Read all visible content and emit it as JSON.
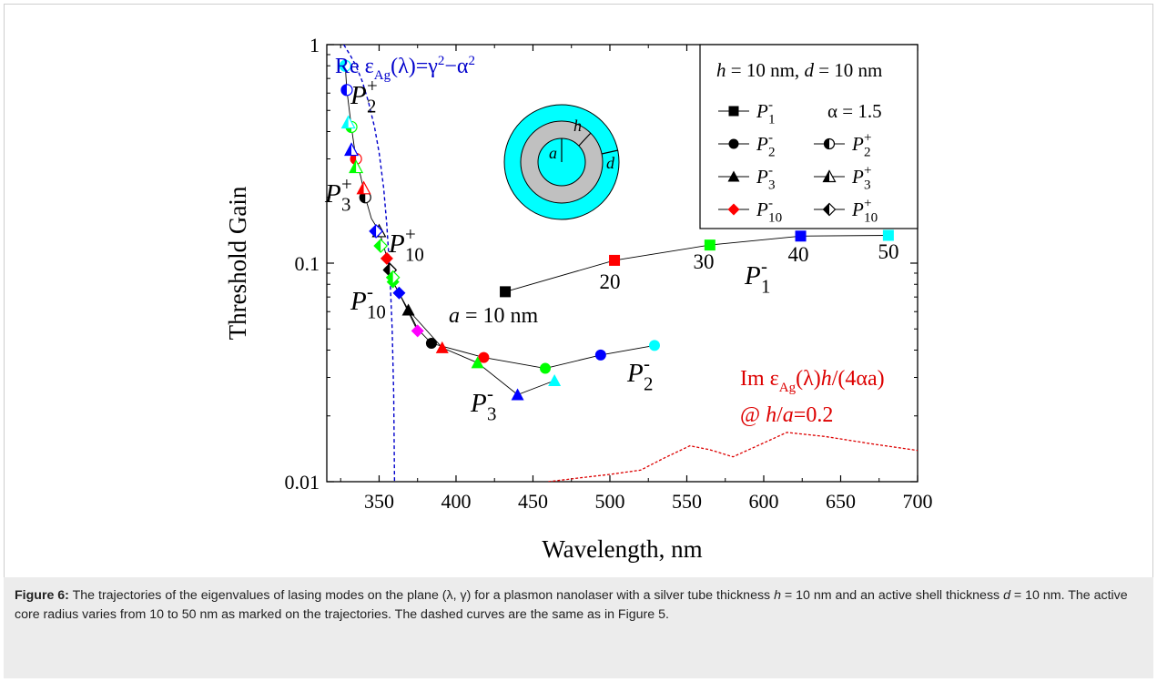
{
  "chart_data": {
    "type": "scatter",
    "xlabel": "Wavelength, nm",
    "ylabel": "Threshold Gain",
    "xlim": [
      316,
      700
    ],
    "ylim": [
      0.01,
      1
    ],
    "yscale": "log",
    "xticks": [
      350,
      400,
      450,
      500,
      550,
      600,
      650,
      700
    ],
    "xtick_labels": [
      "350",
      "400",
      "450",
      "500",
      "550",
      "600",
      "650",
      "700"
    ],
    "yticks": [
      0.01,
      0.1,
      1
    ],
    "ytick_labels": [
      "0.01",
      "0.1",
      "1"
    ],
    "legend": {
      "title_h": "h",
      "title_rest": " = 10 nm, ",
      "title_d": "d",
      "title_rest2": " = 10 nm",
      "alpha_text": "α = 1.5",
      "placement": "top-right"
    },
    "series": [
      {
        "name": "P1-",
        "color": "multi",
        "marker": "square",
        "fill": "full",
        "x": [
          432,
          503,
          565,
          624,
          681
        ],
        "y": [
          0.074,
          0.103,
          0.121,
          0.133,
          0.134
        ],
        "colors": [
          "#000000",
          "#ff0000",
          "#00ff00",
          "#0000ff",
          "#00ffff"
        ]
      },
      {
        "name": "P2-",
        "marker": "circle",
        "fill": "full",
        "x": [
          384,
          418,
          458,
          494,
          529
        ],
        "y": [
          0.043,
          0.037,
          0.033,
          0.038,
          0.042
        ],
        "colors": [
          "#000000",
          "#ff0000",
          "#00ff00",
          "#0000ff",
          "#00ffff"
        ]
      },
      {
        "name": "P3-",
        "marker": "triangle",
        "fill": "full",
        "x": [
          369,
          391,
          414,
          440,
          464
        ],
        "y": [
          0.061,
          0.041,
          0.035,
          0.025,
          0.029
        ],
        "colors": [
          "#000000",
          "#ff0000",
          "#00ff00",
          "#0000ff",
          "#00ffff"
        ]
      },
      {
        "name": "P10-",
        "marker": "diamond",
        "fill": "full",
        "x": [
          357,
          355,
          359,
          363,
          375
        ],
        "y": [
          0.094,
          0.105,
          0.082,
          0.073,
          0.049
        ],
        "colors": [
          "#000000",
          "#ff0000",
          "#00ff00",
          "#0000ff",
          "#ff00ff"
        ]
      },
      {
        "name": "P2+",
        "marker": "circle",
        "fill": "half",
        "x": [
          341,
          335,
          332,
          329,
          328
        ],
        "y": [
          0.2,
          0.3,
          0.42,
          0.62,
          0.8
        ],
        "colors": [
          "#000000",
          "#ff0000",
          "#00ff00",
          "#0000ff",
          "#00ffff"
        ]
      },
      {
        "name": "P3+",
        "marker": "triangle",
        "fill": "half",
        "x": [
          350,
          340,
          335,
          332,
          330
        ],
        "y": [
          0.14,
          0.22,
          0.275,
          0.33,
          0.44
        ],
        "colors": [
          "#000000",
          "#ff0000",
          "#00ff00",
          "#0000ff",
          "#00ffff"
        ]
      },
      {
        "name": "P10+",
        "marker": "diamond",
        "fill": "half",
        "x": [
          357,
          359,
          351,
          348
        ],
        "y": [
          0.093,
          0.086,
          0.12,
          0.14
        ],
        "colors": [
          "#000000",
          "#00ff00",
          "#00ff00",
          "#0000ff"
        ]
      }
    ],
    "curve_re": {
      "name": "Re ε_Ag(λ)=γ²−α²",
      "color": "#0000cc",
      "x": [
        327,
        331,
        335,
        339,
        343,
        347,
        350,
        353,
        355,
        357,
        358.5,
        359.5,
        360
      ],
      "y": [
        1.0,
        0.9,
        0.8,
        0.68,
        0.55,
        0.42,
        0.32,
        0.22,
        0.15,
        0.09,
        0.05,
        0.025,
        0.01
      ]
    },
    "curve_im": {
      "color": "#dd0000",
      "x": [
        460,
        480,
        500,
        520,
        535,
        552,
        565,
        580,
        595,
        615,
        640,
        670,
        700
      ],
      "y": [
        0.01,
        0.0104,
        0.0108,
        0.0113,
        0.0128,
        0.0146,
        0.014,
        0.013,
        0.0145,
        0.0168,
        0.0161,
        0.0149,
        0.0139
      ]
    }
  },
  "annotations": {
    "re_label_pre": "Re ε",
    "re_label_sub": "Ag",
    "re_label_mid": "(λ)=γ",
    "re_label_sup": "2",
    "re_label_minus": "−α",
    "re_label_sup2": "2",
    "im_label_pre": "Im ε",
    "im_label_sub": "Ag",
    "im_label_mid": "(λ)",
    "im_label_h": "h",
    "im_label_rest": "/(4αa)",
    "at_label_pre": "@ ",
    "at_label_h": "h",
    "at_label_slash": "/",
    "at_label_a": "a",
    "at_label_rest": "=0.2",
    "a_label_a": "a",
    "a_label_rest": " = 10 nm",
    "p1_series_text": "20",
    "t20": "20",
    "t30": "30",
    "t40": "40",
    "t50": "50",
    "P": "P",
    "sup_minus": "-",
    "sup_plus": "+",
    "sub1": "1",
    "sub2": "2",
    "sub3": "3",
    "sub10": "10",
    "inset_a": "a",
    "inset_h": "h",
    "inset_d": "d"
  },
  "caption": {
    "label": "Figure 6:",
    "text_1": " The trajectories of the eigenvalues of lasing modes on the plane (λ, γ) for a plasmon nanolaser with a silver tube thickness ",
    "h": "h",
    "text_2": " = 10 nm and an active shell thickness ",
    "d": "d",
    "text_3": " = 10 nm. The active core radius varies from 10 to 50 nm as marked on the trajectories. The dashed curves are the same as in Figure 5."
  },
  "colors": {
    "black": "#000000",
    "red": "#ff0000",
    "green": "#00ff00",
    "blue": "#0000ff",
    "cyan": "#00ffff",
    "magenta": "#ff00ff",
    "gray": "#c0c0c0"
  }
}
